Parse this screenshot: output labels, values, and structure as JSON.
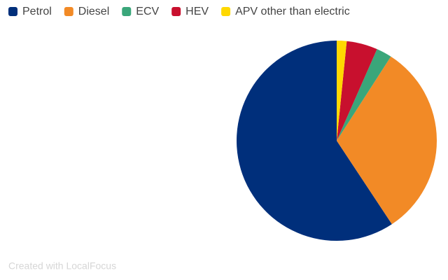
{
  "chart_data": {
    "type": "pie",
    "categories": [
      "Petrol",
      "Diesel",
      "ECV",
      "HEV",
      "APV other than electric"
    ],
    "values": [
      59.3,
      31.6,
      2.5,
      5.0,
      1.6
    ],
    "colors": [
      "#002f7b",
      "#f28a26",
      "#3aa67a",
      "#c8102e",
      "#ffd800"
    ],
    "legend": "top-left",
    "credit": "Created with LocalFocus"
  }
}
